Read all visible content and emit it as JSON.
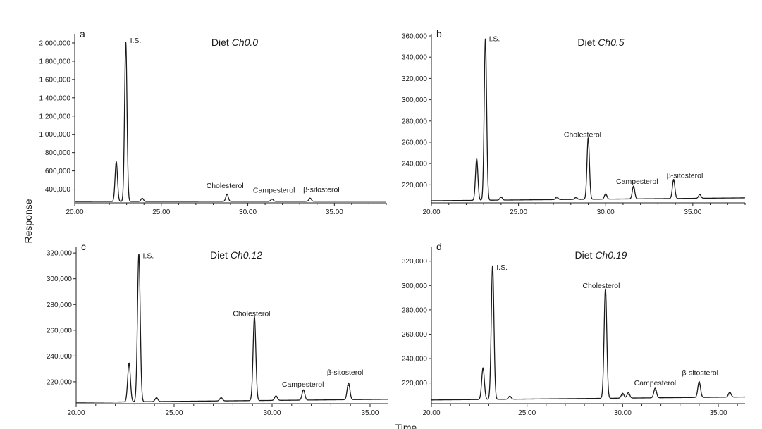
{
  "figure": {
    "ylabel": "Response",
    "xlabel": "Time"
  },
  "chart_data": [
    {
      "type": "line",
      "panel_label": "a",
      "title_prefix": "Diet ",
      "title_italic": "Ch0.0",
      "xlim": [
        20,
        38
      ],
      "ylim": [
        250000,
        2100000
      ],
      "x_ticks": [
        20,
        25,
        30,
        35
      ],
      "x_tick_labels": [
        "20.00",
        "25.00",
        "30.00",
        "35.00"
      ],
      "y_ticks": [
        400000,
        600000,
        800000,
        1000000,
        1200000,
        1400000,
        1600000,
        1800000,
        2000000
      ],
      "y_tick_labels": [
        "400,000",
        "600,000",
        "800,000",
        "1,000,000",
        "1,200,000",
        "1,400,000",
        "1,600,000",
        "1,800,000",
        "2,000,000"
      ],
      "baseline": 265000,
      "peaks": [
        {
          "x": 22.4,
          "y": 700000
        },
        {
          "x": 22.95,
          "y": 2010000
        },
        {
          "x": 23.9,
          "y": 300000
        },
        {
          "x": 28.8,
          "y": 345000
        },
        {
          "x": 31.4,
          "y": 290000
        },
        {
          "x": 33.6,
          "y": 300000
        }
      ],
      "annotations": [
        {
          "text": "I.S.",
          "x": 23.2,
          "y": 2000000
        },
        {
          "text": "Cholesterol",
          "x": 27.6,
          "y": 410000
        },
        {
          "text": "Campesterol",
          "x": 30.3,
          "y": 360000
        },
        {
          "text": "β-sitosterol",
          "x": 33.2,
          "y": 370000
        }
      ]
    },
    {
      "type": "line",
      "panel_label": "b",
      "title_prefix": "Diet ",
      "title_italic": "Ch0.5",
      "xlim": [
        20,
        38
      ],
      "ylim": [
        203000,
        362000
      ],
      "x_ticks": [
        20,
        25,
        30,
        35
      ],
      "x_tick_labels": [
        "20.00",
        "25.00",
        "30.00",
        "35.00"
      ],
      "y_ticks": [
        220000,
        240000,
        260000,
        280000,
        300000,
        320000,
        340000,
        360000
      ],
      "y_tick_labels": [
        "220,000",
        "240,000",
        "260,000",
        "280,000",
        "300,000",
        "320,000",
        "340,000",
        "360,000"
      ],
      "baseline": 205000,
      "peaks": [
        {
          "x": 22.6,
          "y": 244000
        },
        {
          "x": 23.1,
          "y": 357000
        },
        {
          "x": 24.0,
          "y": 208000
        },
        {
          "x": 27.2,
          "y": 207500
        },
        {
          "x": 28.3,
          "y": 207000
        },
        {
          "x": 29.0,
          "y": 263000
        },
        {
          "x": 30.0,
          "y": 210000
        },
        {
          "x": 31.6,
          "y": 217000
        },
        {
          "x": 33.9,
          "y": 223000
        },
        {
          "x": 35.4,
          "y": 208500
        }
      ],
      "annotations": [
        {
          "text": "I.S.",
          "x": 23.3,
          "y": 355000
        },
        {
          "text": "Cholesterol",
          "x": 27.6,
          "y": 265000
        },
        {
          "text": "Campesterol",
          "x": 30.6,
          "y": 221000
        },
        {
          "text": "β-sitosterol",
          "x": 33.5,
          "y": 226500
        }
      ]
    },
    {
      "type": "line",
      "panel_label": "c",
      "title_prefix": "Diet ",
      "title_italic": "Ch0.12",
      "xlim": [
        20,
        35.9
      ],
      "ylim": [
        203000,
        325000
      ],
      "x_ticks": [
        20,
        25,
        30,
        35
      ],
      "x_tick_labels": [
        "20.00",
        "25.00",
        "30.00",
        "35.00"
      ],
      "y_ticks": [
        220000,
        240000,
        260000,
        280000,
        300000,
        320000
      ],
      "y_tick_labels": [
        "220,000",
        "240,000",
        "260,000",
        "280,000",
        "300,000",
        "320,000"
      ],
      "baseline": 204000,
      "peaks": [
        {
          "x": 22.7,
          "y": 234000
        },
        {
          "x": 23.2,
          "y": 319000
        },
        {
          "x": 24.1,
          "y": 207000
        },
        {
          "x": 27.4,
          "y": 206500
        },
        {
          "x": 29.1,
          "y": 269000
        },
        {
          "x": 30.2,
          "y": 207500
        },
        {
          "x": 31.6,
          "y": 212000
        },
        {
          "x": 33.9,
          "y": 217000
        }
      ],
      "annotations": [
        {
          "text": "I.S.",
          "x": 23.4,
          "y": 316000
        },
        {
          "text": "Cholesterol",
          "x": 28.0,
          "y": 271000
        },
        {
          "text": "Campesterol",
          "x": 30.5,
          "y": 216000
        },
        {
          "text": "β-sitosterol",
          "x": 32.8,
          "y": 225500
        }
      ]
    },
    {
      "type": "line",
      "panel_label": "d",
      "title_prefix": "Diet ",
      "title_italic": "Ch0.19",
      "xlim": [
        20,
        36.4
      ],
      "ylim": [
        203000,
        332000
      ],
      "x_ticks": [
        20,
        25,
        30,
        35
      ],
      "x_tick_labels": [
        "20.00",
        "25.00",
        "30.00",
        "35.00"
      ],
      "y_ticks": [
        220000,
        240000,
        260000,
        280000,
        300000,
        320000
      ],
      "y_tick_labels": [
        "220,000",
        "240,000",
        "260,000",
        "280,000",
        "300,000",
        "320,000"
      ],
      "baseline": 206000,
      "peaks": [
        {
          "x": 22.7,
          "y": 232000
        },
        {
          "x": 23.2,
          "y": 316000
        },
        {
          "x": 24.1,
          "y": 208500
        },
        {
          "x": 29.1,
          "y": 296000
        },
        {
          "x": 30.0,
          "y": 210000
        },
        {
          "x": 30.3,
          "y": 210500
        },
        {
          "x": 31.7,
          "y": 214000
        },
        {
          "x": 34.0,
          "y": 219000
        },
        {
          "x": 35.6,
          "y": 210000
        }
      ],
      "annotations": [
        {
          "text": "I.S.",
          "x": 23.4,
          "y": 313000
        },
        {
          "text": "Cholesterol",
          "x": 27.9,
          "y": 298000
        },
        {
          "text": "Campesterol",
          "x": 30.6,
          "y": 218000
        },
        {
          "text": "β-sitosterol",
          "x": 33.1,
          "y": 226500
        }
      ]
    }
  ]
}
